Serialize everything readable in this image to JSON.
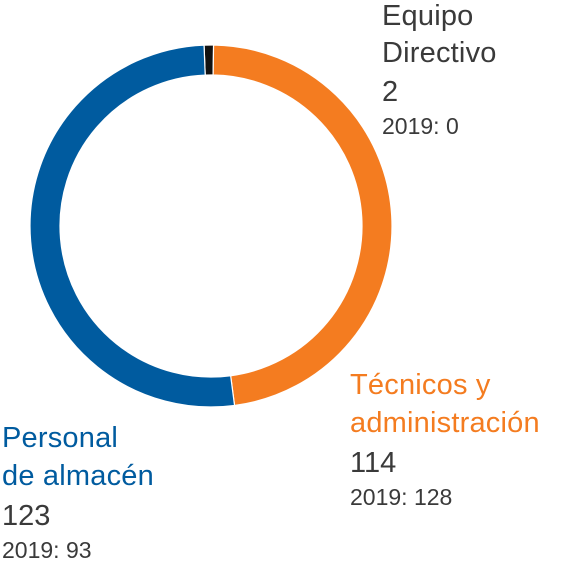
{
  "chart_data": {
    "type": "pie",
    "style": "donut",
    "segments": [
      {
        "label_lines": [
          "Equipo",
          "Directivo"
        ],
        "value": 2,
        "prev_label": "2019: 0",
        "color": "#111111",
        "text_color": "#3a3a3a"
      },
      {
        "label_lines": [
          "Técnicos y",
          "administración"
        ],
        "value": 114,
        "prev_label": "2019: 128",
        "color": "#f47c20",
        "text_color": "#f47c20"
      },
      {
        "label_lines": [
          "Personal",
          "de almacén"
        ],
        "value": 123,
        "prev_label": "2019: 93",
        "color": "#005b9f",
        "text_color": "#005b9f"
      }
    ]
  }
}
